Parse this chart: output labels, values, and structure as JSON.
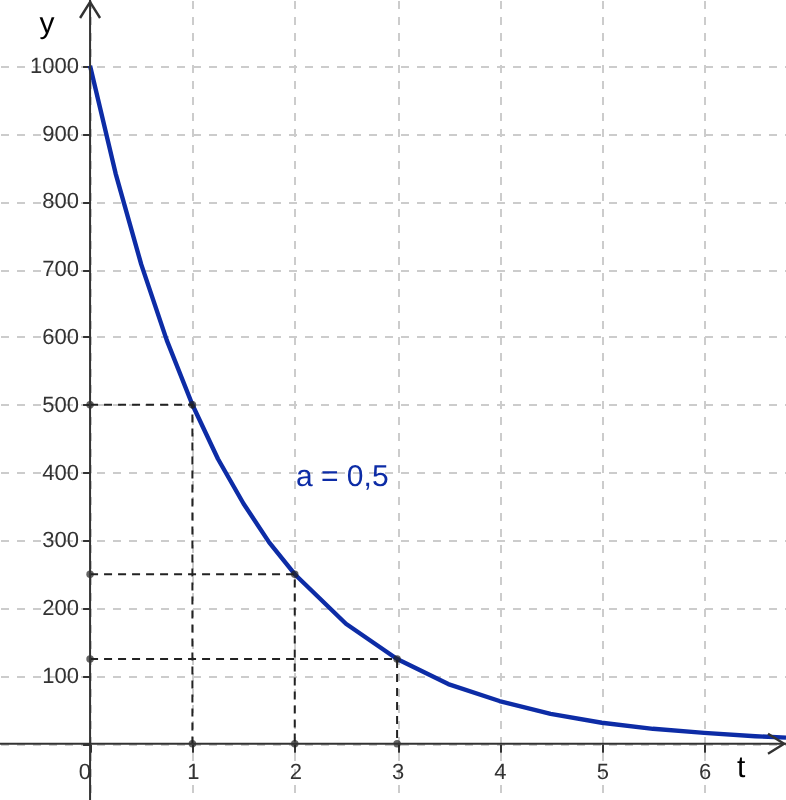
{
  "chart_data": {
    "type": "line",
    "xlabel": "t",
    "ylabel": "y",
    "xlim": [
      -0.88,
      6.8
    ],
    "ylim": [
      -83,
      1097
    ],
    "xticks": [
      0,
      1,
      2,
      3,
      4,
      5,
      6
    ],
    "yticks": [
      {
        "value": 0,
        "label": null
      },
      100,
      200,
      300,
      400,
      500,
      600,
      700,
      800,
      900,
      1000
    ],
    "grid": true,
    "annotations": [
      "a = 0,5"
    ],
    "series": [
      {
        "color": "#0d2ca6",
        "line_style": "solid",
        "marker": "none",
        "x": [
          0,
          0.25,
          0.5,
          0.75,
          1,
          1.25,
          1.5,
          1.75,
          2,
          2.5,
          3,
          3.5,
          4,
          4.5,
          5,
          5.5,
          6,
          6.5,
          6.8
        ],
        "values": [
          1000,
          841,
          707,
          595,
          500,
          420,
          354,
          297,
          250,
          177,
          125,
          88,
          63,
          44,
          31,
          22,
          16,
          11,
          9
        ]
      },
      {
        "color": "#222222",
        "line_style": "dashed",
        "marker": "circle",
        "x": [
          0,
          1,
          1
        ],
        "values": [
          500,
          500,
          0
        ]
      },
      {
        "color": "#222222",
        "line_style": "dashed",
        "marker": "circle",
        "x": [
          0,
          2,
          2
        ],
        "values": [
          250,
          250,
          0
        ]
      },
      {
        "color": "#222222",
        "line_style": "dashed",
        "marker": "circle",
        "x": [
          0,
          3,
          3
        ],
        "values": [
          125,
          125,
          0
        ]
      }
    ]
  }
}
